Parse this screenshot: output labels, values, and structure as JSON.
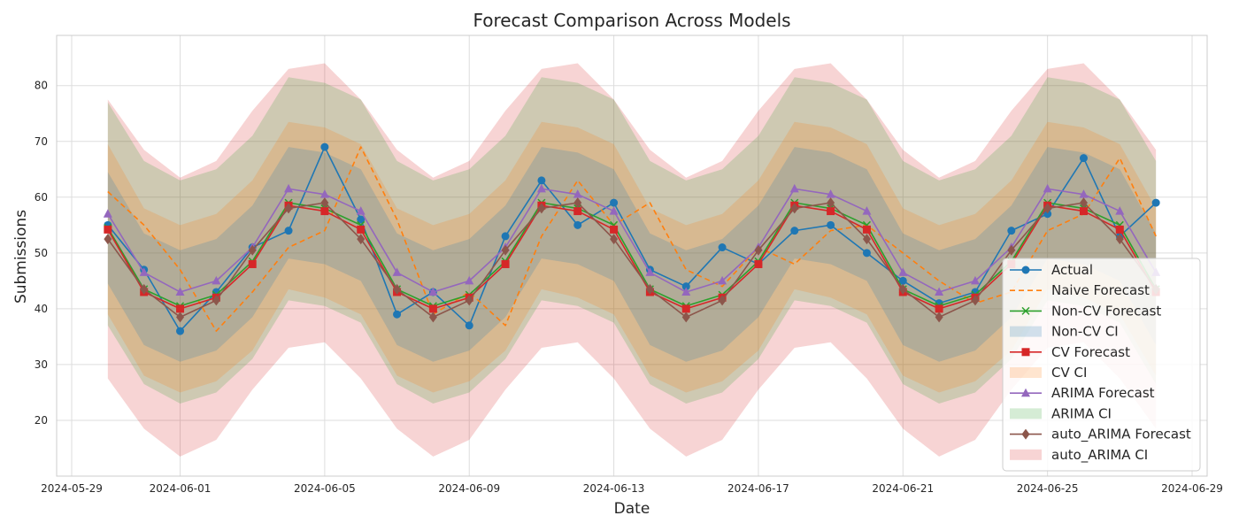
{
  "chart_data": {
    "type": "line",
    "title": "Forecast Comparison Across Models",
    "xlabel": "Date",
    "ylabel": "Submissions",
    "xlim": [
      "2024-05-28T14:00",
      "2024-06-29T10:00"
    ],
    "ylim": [
      10,
      89
    ],
    "grid": true,
    "legend_position": "lower-right",
    "x_ticks": [
      "2024-05-29",
      "2024-06-01",
      "2024-06-05",
      "2024-06-09",
      "2024-06-13",
      "2024-06-17",
      "2024-06-21",
      "2024-06-25",
      "2024-06-29"
    ],
    "x_tick_labels": [
      "2024-05-29",
      "2024-06-01",
      "2024-06-05",
      "2024-06-09",
      "2024-06-13",
      "2024-06-17",
      "2024-06-21",
      "2024-06-25",
      "2024-06-29"
    ],
    "y_ticks": [
      20,
      30,
      40,
      50,
      60,
      70,
      80
    ],
    "x": [
      "2024-05-30",
      "2024-05-31",
      "2024-06-01",
      "2024-06-02",
      "2024-06-03",
      "2024-06-04",
      "2024-06-05",
      "2024-06-06",
      "2024-06-07",
      "2024-06-08",
      "2024-06-09",
      "2024-06-10",
      "2024-06-11",
      "2024-06-12",
      "2024-06-13",
      "2024-06-14",
      "2024-06-15",
      "2024-06-16",
      "2024-06-17",
      "2024-06-18",
      "2024-06-19",
      "2024-06-20",
      "2024-06-21",
      "2024-06-22",
      "2024-06-23",
      "2024-06-24",
      "2024-06-25",
      "2024-06-26",
      "2024-06-27",
      "2024-06-28"
    ],
    "bands": [
      {
        "name": "auto_ARIMA CI",
        "color": "#d62728",
        "opacity": 0.2,
        "lower": [
          27.5,
          18.5,
          13.5,
          16.5,
          25.5,
          33.0,
          34.0,
          27.5,
          18.5,
          13.5,
          16.5,
          25.5,
          33.0,
          34.0,
          27.5,
          18.5,
          13.5,
          16.5,
          25.5,
          33.0,
          34.0,
          27.5,
          18.5,
          13.5,
          16.5,
          25.5,
          33.0,
          34.0,
          27.5,
          18.5
        ],
        "upper": [
          77.5,
          68.5,
          63.5,
          66.5,
          75.5,
          83.0,
          84.0,
          77.5,
          68.5,
          63.5,
          66.5,
          75.5,
          83.0,
          84.0,
          77.5,
          68.5,
          63.5,
          66.5,
          75.5,
          83.0,
          84.0,
          77.5,
          68.5,
          63.5,
          66.5,
          75.5,
          83.0,
          84.0,
          77.5,
          68.5
        ]
      },
      {
        "name": "ARIMA CI",
        "color": "#2ca02c",
        "opacity": 0.2,
        "lower": [
          37.0,
          26.5,
          23.0,
          25.0,
          31.0,
          41.5,
          40.5,
          37.5,
          26.5,
          23.0,
          25.0,
          31.0,
          41.5,
          40.5,
          37.5,
          26.5,
          23.0,
          25.0,
          31.0,
          41.5,
          40.5,
          37.5,
          26.5,
          23.0,
          25.0,
          31.0,
          41.5,
          40.5,
          37.5,
          26.5
        ],
        "upper": [
          77.0,
          66.5,
          63.0,
          65.0,
          71.0,
          81.5,
          80.5,
          77.5,
          66.5,
          63.0,
          65.0,
          71.0,
          81.5,
          80.5,
          77.5,
          66.5,
          63.0,
          65.0,
          71.0,
          81.5,
          80.5,
          77.5,
          66.5,
          63.0,
          65.0,
          71.0,
          81.5,
          80.5,
          77.5,
          66.5
        ]
      },
      {
        "name": "CV CI",
        "color": "#ff7f0e",
        "opacity": 0.2,
        "lower": [
          39.0,
          28.0,
          25.0,
          27.0,
          32.5,
          43.5,
          42.0,
          39.0,
          28.0,
          25.0,
          27.0,
          32.5,
          43.5,
          42.0,
          39.0,
          28.0,
          25.0,
          27.0,
          32.5,
          43.5,
          42.0,
          39.0,
          28.0,
          25.0,
          27.0,
          32.5,
          43.5,
          42.0,
          39.0,
          28.0
        ],
        "upper": [
          69.5,
          58.0,
          55.0,
          57.0,
          63.0,
          73.5,
          72.5,
          69.5,
          58.0,
          55.0,
          57.0,
          63.0,
          73.5,
          72.5,
          69.5,
          58.0,
          55.0,
          57.0,
          63.0,
          73.5,
          72.5,
          69.5,
          58.0,
          55.0,
          57.0,
          63.0,
          73.5,
          72.5,
          69.5,
          58.0
        ]
      },
      {
        "name": "Non-CV CI",
        "color": "#1f77b4",
        "opacity": 0.2,
        "lower": [
          44.5,
          33.5,
          30.5,
          32.5,
          38.5,
          49.0,
          48.0,
          45.0,
          33.5,
          30.5,
          32.5,
          38.5,
          49.0,
          48.0,
          45.0,
          33.5,
          30.5,
          32.5,
          38.5,
          49.0,
          48.0,
          45.0,
          33.5,
          30.5,
          32.5,
          38.5,
          49.0,
          48.0,
          45.0,
          33.5
        ],
        "upper": [
          64.5,
          53.5,
          50.5,
          52.5,
          58.5,
          69.0,
          68.0,
          65.0,
          53.5,
          50.5,
          52.5,
          58.5,
          69.0,
          68.0,
          65.0,
          53.5,
          50.5,
          52.5,
          58.5,
          69.0,
          68.0,
          65.0,
          53.5,
          50.5,
          52.5,
          58.5,
          69.0,
          68.0,
          65.0,
          53.5
        ]
      }
    ],
    "series": [
      {
        "name": "Actual",
        "color": "#1f77b4",
        "marker": "circle",
        "dash": "",
        "values": [
          55,
          47,
          36,
          43,
          51,
          54,
          69,
          56,
          39,
          43,
          37,
          53,
          63,
          55,
          59,
          47,
          44,
          51,
          48,
          54,
          55,
          50,
          45,
          41,
          43,
          54,
          57,
          67,
          53,
          59
        ]
      },
      {
        "name": "Naive Forecast",
        "color": "#ff7f0e",
        "marker": "none",
        "dash": "6,4",
        "values": [
          61,
          55,
          47,
          36,
          43,
          51,
          54,
          69,
          56,
          39,
          43,
          37,
          53,
          63,
          55,
          59,
          47,
          44,
          51,
          48,
          54,
          55,
          50,
          45,
          41,
          43,
          54,
          57,
          67,
          53
        ]
      },
      {
        "name": "Non-CV Forecast",
        "color": "#2ca02c",
        "marker": "x",
        "dash": "",
        "values": [
          54.5,
          43.5,
          40.5,
          42.5,
          48.5,
          59.0,
          58.0,
          55.0,
          43.5,
          40.5,
          42.5,
          48.5,
          59.0,
          58.0,
          55.0,
          43.5,
          40.5,
          42.5,
          48.5,
          59.0,
          58.0,
          55.0,
          43.5,
          40.5,
          42.5,
          48.5,
          59.0,
          58.0,
          55.0,
          43.5
        ]
      },
      {
        "name": "CV Forecast",
        "color": "#d62728",
        "marker": "square",
        "dash": "",
        "values": [
          54.2,
          43.0,
          40.0,
          42.0,
          48.0,
          58.5,
          57.5,
          54.2,
          43.0,
          40.0,
          42.0,
          48.0,
          58.5,
          57.5,
          54.2,
          43.0,
          40.0,
          42.0,
          48.0,
          58.5,
          57.5,
          54.2,
          43.0,
          40.0,
          42.0,
          48.0,
          58.5,
          57.5,
          54.2,
          43.0
        ]
      },
      {
        "name": "ARIMA Forecast",
        "color": "#9467bd",
        "marker": "triangle",
        "dash": "",
        "values": [
          57.0,
          46.5,
          43.0,
          45.0,
          51.0,
          61.5,
          60.5,
          57.5,
          46.5,
          43.0,
          45.0,
          51.0,
          61.5,
          60.5,
          57.5,
          46.5,
          43.0,
          45.0,
          51.0,
          61.5,
          60.5,
          57.5,
          46.5,
          43.0,
          45.0,
          51.0,
          61.5,
          60.5,
          57.5,
          46.5
        ]
      },
      {
        "name": "auto_ARIMA Forecast",
        "color": "#8c564b",
        "marker": "diamond",
        "dash": "",
        "values": [
          52.5,
          43.5,
          38.5,
          41.5,
          50.5,
          58.0,
          59.0,
          52.5,
          43.5,
          38.5,
          41.5,
          50.5,
          58.0,
          59.0,
          52.5,
          43.5,
          38.5,
          41.5,
          50.5,
          58.0,
          59.0,
          52.5,
          43.5,
          38.5,
          41.5,
          50.5,
          58.0,
          59.0,
          52.5,
          43.5
        ]
      }
    ],
    "legend": [
      {
        "label": "Actual",
        "kind": "line",
        "color": "#1f77b4",
        "marker": "circle",
        "dash": ""
      },
      {
        "label": "Naive Forecast",
        "kind": "line",
        "color": "#ff7f0e",
        "marker": "none",
        "dash": "6,4"
      },
      {
        "label": "Non-CV Forecast",
        "kind": "line",
        "color": "#2ca02c",
        "marker": "x",
        "dash": ""
      },
      {
        "label": "Non-CV CI",
        "kind": "patch",
        "color": "#1f77b4"
      },
      {
        "label": "CV Forecast",
        "kind": "line",
        "color": "#d62728",
        "marker": "square",
        "dash": ""
      },
      {
        "label": "CV CI",
        "kind": "patch",
        "color": "#ff7f0e"
      },
      {
        "label": "ARIMA Forecast",
        "kind": "line",
        "color": "#9467bd",
        "marker": "triangle",
        "dash": ""
      },
      {
        "label": "ARIMA CI",
        "kind": "patch",
        "color": "#2ca02c"
      },
      {
        "label": "auto_ARIMA Forecast",
        "kind": "line",
        "color": "#8c564b",
        "marker": "diamond",
        "dash": ""
      },
      {
        "label": "auto_ARIMA CI",
        "kind": "patch",
        "color": "#d62728"
      }
    ]
  }
}
